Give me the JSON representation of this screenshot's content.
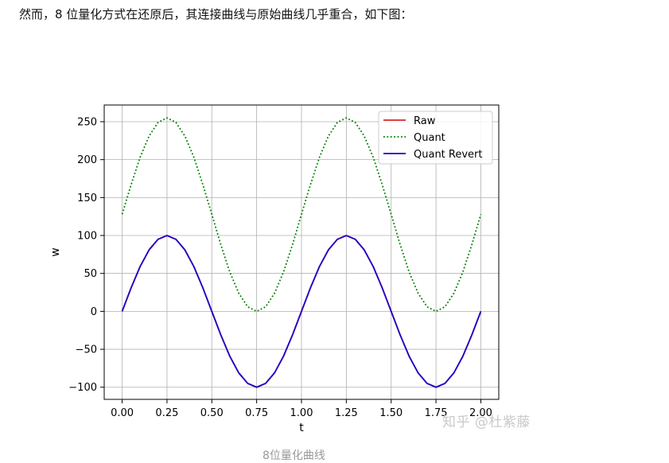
{
  "intro_text": "然而，8 位量化方式在还原后，其连接曲线与原始曲线几乎重合，如下图：",
  "watermark": "知乎 @杜紫藤",
  "caption": "8位量化曲线",
  "chart_data": {
    "type": "line",
    "xlabel": "t",
    "ylabel": "w",
    "xlim": [
      -0.1,
      2.1
    ],
    "ylim": [
      -116,
      272
    ],
    "xticks": [
      0.0,
      0.25,
      0.5,
      0.75,
      1.0,
      1.25,
      1.5,
      1.75,
      2.0
    ],
    "xtick_labels": [
      "0.00",
      "0.25",
      "0.50",
      "0.75",
      "1.00",
      "1.25",
      "1.50",
      "1.75",
      "2.00"
    ],
    "yticks": [
      -100,
      -50,
      0,
      50,
      100,
      150,
      200,
      250
    ],
    "ytick_labels": [
      "−100",
      "−50",
      "0",
      "50",
      "100",
      "150",
      "200",
      "250"
    ],
    "grid": true,
    "legend_position": "top-right",
    "x": [
      0.0,
      0.05,
      0.1,
      0.15,
      0.2,
      0.25,
      0.3,
      0.35,
      0.4,
      0.45,
      0.5,
      0.55,
      0.6,
      0.65,
      0.7,
      0.75,
      0.8,
      0.85,
      0.9,
      0.95,
      1.0,
      1.05,
      1.1,
      1.15,
      1.2,
      1.25,
      1.3,
      1.35,
      1.4,
      1.45,
      1.5,
      1.55,
      1.6,
      1.65,
      1.7,
      1.75,
      1.8,
      1.85,
      1.9,
      1.95,
      2.0
    ],
    "series": [
      {
        "name": "Raw",
        "color": "#d62728",
        "style": "solid",
        "values": [
          0,
          31,
          59,
          81,
          95,
          100,
          95,
          81,
          59,
          31,
          0,
          -31,
          -59,
          -81,
          -95,
          -100,
          -95,
          -81,
          -59,
          -31,
          0,
          31,
          59,
          81,
          95,
          100,
          95,
          81,
          59,
          31,
          0,
          -31,
          -59,
          -81,
          -95,
          -100,
          -95,
          -81,
          -59,
          -31,
          0
        ]
      },
      {
        "name": "Quant",
        "color": "#008000",
        "style": "dotted",
        "values": [
          128,
          167,
          203,
          231,
          249,
          255,
          249,
          231,
          203,
          167,
          128,
          88,
          52,
          24,
          6,
          0,
          6,
          24,
          52,
          88,
          128,
          167,
          203,
          231,
          249,
          255,
          249,
          231,
          203,
          167,
          128,
          88,
          52,
          24,
          6,
          0,
          6,
          24,
          52,
          88,
          128
        ]
      },
      {
        "name": "Quant Revert",
        "color": "#1f00cc",
        "style": "solid",
        "values": [
          0,
          31,
          59,
          81,
          95,
          100,
          95,
          81,
          59,
          31,
          0,
          -31,
          -59,
          -81,
          -95,
          -100,
          -95,
          -81,
          -59,
          -31,
          0,
          31,
          59,
          81,
          95,
          100,
          95,
          81,
          59,
          31,
          0,
          -31,
          -59,
          -81,
          -95,
          -100,
          -95,
          -81,
          -59,
          -31,
          0
        ]
      }
    ]
  }
}
